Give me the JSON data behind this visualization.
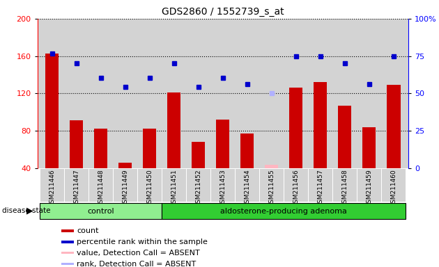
{
  "title": "GDS2860 / 1552739_s_at",
  "samples": [
    "GSM211446",
    "GSM211447",
    "GSM211448",
    "GSM211449",
    "GSM211450",
    "GSM211451",
    "GSM211452",
    "GSM211453",
    "GSM211454",
    "GSM211455",
    "GSM211456",
    "GSM211457",
    "GSM211458",
    "GSM211459",
    "GSM211460"
  ],
  "counts": [
    163,
    91,
    82,
    46,
    82,
    121,
    68,
    92,
    77,
    null,
    126,
    132,
    107,
    84,
    129
  ],
  "absent_counts": [
    null,
    null,
    null,
    null,
    null,
    null,
    null,
    null,
    null,
    44,
    null,
    null,
    null,
    null,
    null
  ],
  "percentile_ranks_left": [
    163,
    152,
    137,
    127,
    137,
    152,
    127,
    137,
    130,
    null,
    160,
    160,
    152,
    130,
    160
  ],
  "absent_ranks_left": [
    null,
    null,
    null,
    null,
    null,
    null,
    null,
    null,
    null,
    120,
    null,
    null,
    null,
    null,
    null
  ],
  "ylim_left": [
    40,
    200
  ],
  "ylim_right": [
    0,
    100
  ],
  "yticks_left": [
    40,
    80,
    120,
    160,
    200
  ],
  "yticks_right": [
    0,
    25,
    50,
    75,
    100
  ],
  "bar_color": "#cc0000",
  "absent_bar_color": "#ffb6c1",
  "dot_color": "#0000cc",
  "absent_dot_color": "#b0b0ff",
  "bar_width": 0.55,
  "background_color": "#ffffff",
  "plot_bg_color": "#d3d3d3",
  "tick_bg_color": "#c8c8c8",
  "control_color": "#90ee90",
  "adenoma_color": "#32cd32",
  "legend_items": [
    {
      "color": "#cc0000",
      "label": "count"
    },
    {
      "color": "#0000cc",
      "label": "percentile rank within the sample"
    },
    {
      "color": "#ffb6c1",
      "label": "value, Detection Call = ABSENT"
    },
    {
      "color": "#b0b0ff",
      "label": "rank, Detection Call = ABSENT"
    }
  ],
  "n_control": 5,
  "n_adenoma": 10
}
